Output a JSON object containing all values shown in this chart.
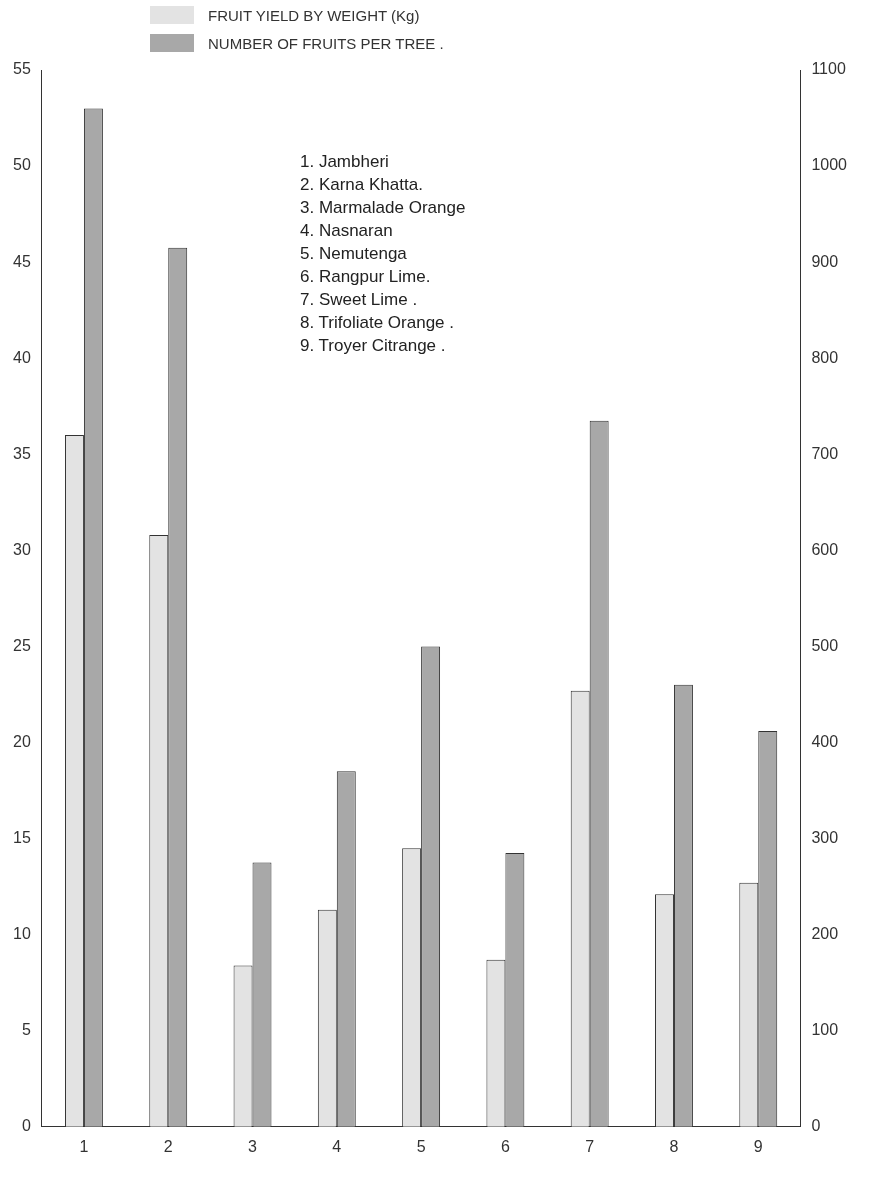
{
  "chart_data": {
    "type": "bar",
    "categories": [
      "1",
      "2",
      "3",
      "4",
      "5",
      "6",
      "7",
      "8",
      "9"
    ],
    "series": [
      {
        "name": "FRUIT YIELD BY WEIGHT (Kg)",
        "color": "#e3e3e3",
        "values": [
          36,
          30.8,
          8.4,
          11.3,
          14.5,
          8.7,
          22.7,
          12.1,
          12.7
        ]
      },
      {
        "name": "NUMBER OF FRUITS PER TREE .",
        "color": "#a8a8a8",
        "axis": "y2",
        "values": [
          1060,
          915,
          275,
          370,
          500,
          285,
          735,
          460,
          412
        ]
      }
    ],
    "ylim": [
      0,
      55
    ],
    "yticks": [
      0,
      5,
      10,
      15,
      20,
      25,
      30,
      35,
      40,
      45,
      50,
      55
    ],
    "y2lim": [
      0,
      1100
    ],
    "y2ticks": [
      0,
      100,
      200,
      300,
      400,
      500,
      600,
      700,
      800,
      900,
      1000,
      1100
    ],
    "legend": "top left",
    "grid": false,
    "annotations": [
      "1. Jambheri",
      "2. Karna Khatta.",
      "3. Marmalade Orange",
      "4. Nasnaran",
      "5. Nemutenga",
      "6. Rangpur Lime.",
      "7. Sweet Lime .",
      "8. Trifoliate Orange .",
      "9. Troyer Citrange ."
    ]
  }
}
